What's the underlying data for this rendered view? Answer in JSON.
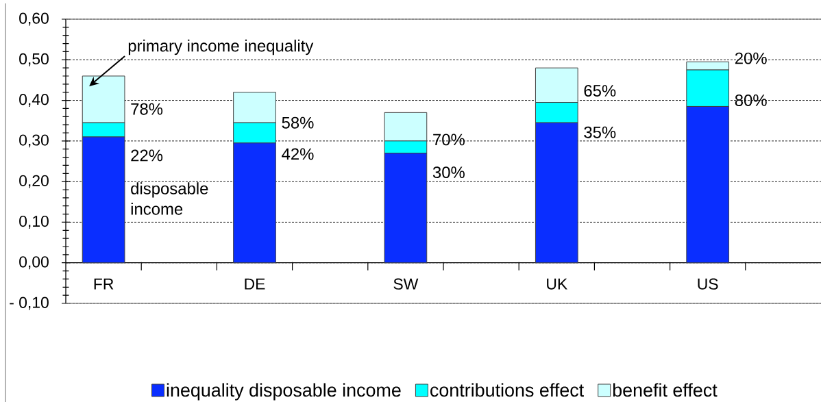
{
  "chart_data": {
    "type": "bar",
    "stacked": true,
    "categories": [
      "FR",
      null,
      "DE",
      null,
      "SW",
      null,
      "UK",
      null,
      "US",
      null
    ],
    "series": [
      {
        "name": "inequality disposable income",
        "color": "#0a2eff",
        "values": [
          0.31,
          null,
          0.295,
          null,
          0.27,
          null,
          0.345,
          null,
          0.385,
          null
        ]
      },
      {
        "name": "contributions effect",
        "color": "#00ffff",
        "values": [
          0.035,
          null,
          0.05,
          null,
          0.03,
          null,
          0.05,
          null,
          0.09,
          null
        ]
      },
      {
        "name": "benefit effect",
        "color": "#ccffff",
        "values": [
          0.115,
          null,
          0.075,
          null,
          0.07,
          null,
          0.085,
          null,
          0.02,
          null
        ]
      }
    ],
    "ylim": [
      -0.1,
      0.6
    ],
    "yticks": [
      {
        "value": -0.1,
        "label": "- 0,10"
      },
      {
        "value": -0.08,
        "label": null
      },
      {
        "value": -0.06,
        "label": null
      },
      {
        "value": -0.04,
        "label": null
      },
      {
        "value": -0.02,
        "label": null
      },
      {
        "value": 0,
        "label": "0,00"
      },
      {
        "value": 0.02,
        "label": null
      },
      {
        "value": 0.04,
        "label": null
      },
      {
        "value": 0.06,
        "label": null
      },
      {
        "value": 0.08,
        "label": null
      },
      {
        "value": 0.1,
        "label": "0,10"
      },
      {
        "value": 0.12,
        "label": null
      },
      {
        "value": 0.14,
        "label": null
      },
      {
        "value": 0.16,
        "label": null
      },
      {
        "value": 0.18,
        "label": null
      },
      {
        "value": 0.2,
        "label": "0,20"
      },
      {
        "value": 0.22,
        "label": null
      },
      {
        "value": 0.24,
        "label": null
      },
      {
        "value": 0.26,
        "label": null
      },
      {
        "value": 0.28,
        "label": null
      },
      {
        "value": 0.3,
        "label": "0,30"
      },
      {
        "value": 0.32,
        "label": null
      },
      {
        "value": 0.34,
        "label": null
      },
      {
        "value": 0.36,
        "label": null
      },
      {
        "value": 0.38,
        "label": null
      },
      {
        "value": 0.4,
        "label": "0,40"
      },
      {
        "value": 0.42,
        "label": null
      },
      {
        "value": 0.44,
        "label": null
      },
      {
        "value": 0.46,
        "label": null
      },
      {
        "value": 0.48,
        "label": null
      },
      {
        "value": 0.5,
        "label": "0,50"
      },
      {
        "value": 0.52,
        "label": null
      },
      {
        "value": 0.54,
        "label": null
      },
      {
        "value": 0.56,
        "label": null
      },
      {
        "value": 0.58,
        "label": null
      },
      {
        "value": 0.6,
        "label": "0,60"
      }
    ],
    "grid": "y",
    "legend": "bottom",
    "annotations": [
      "primary income inequality",
      "disposable income",
      "78%",
      "22%",
      "58%",
      "42%",
      "70%",
      "30%",
      "65%",
      "35%",
      "20%",
      "80%"
    ]
  }
}
